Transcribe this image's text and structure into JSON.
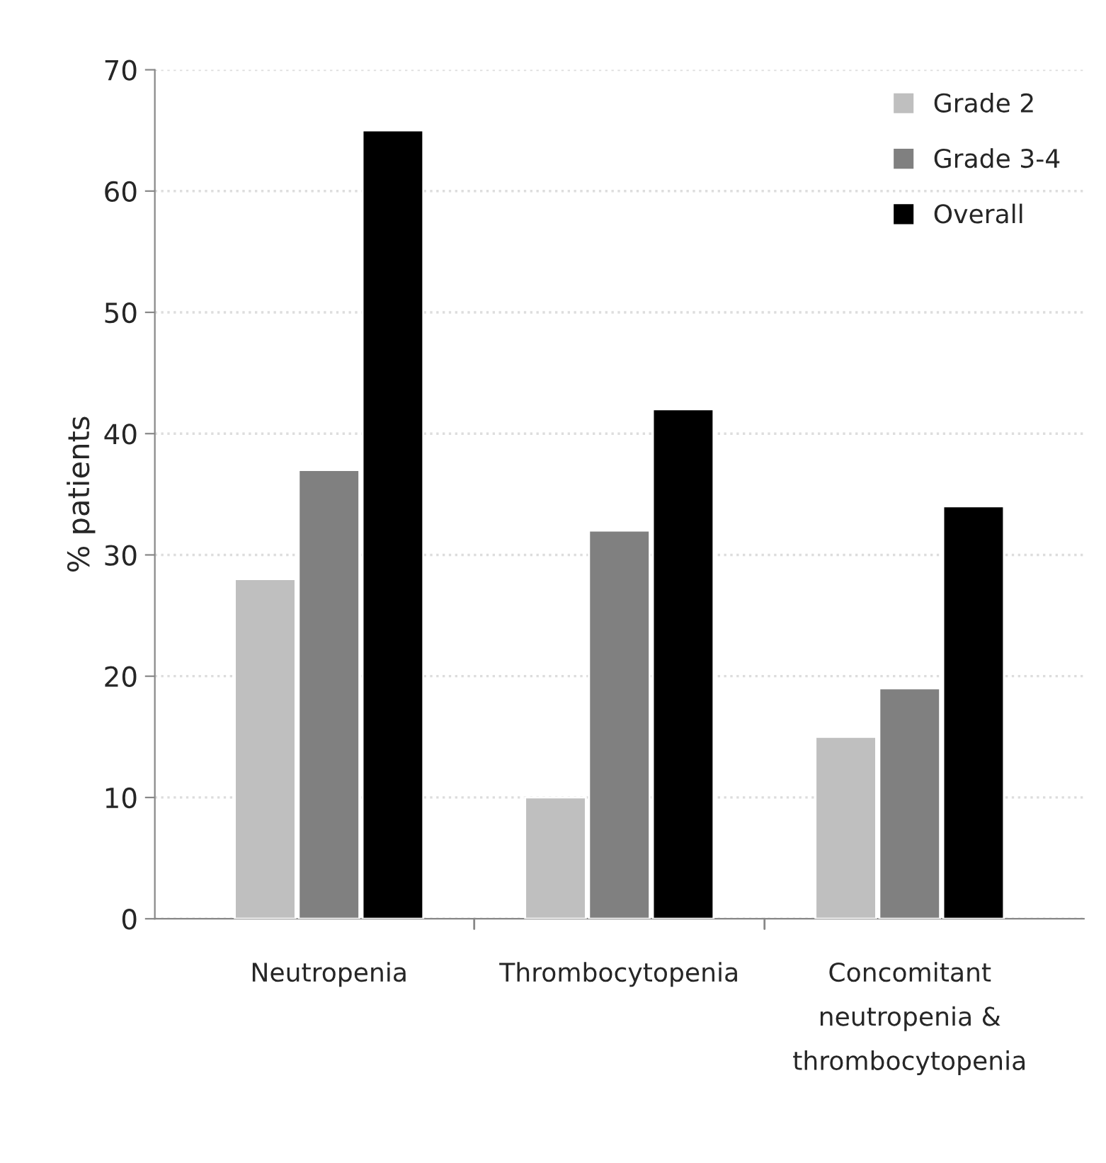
{
  "chart_data": {
    "type": "bar",
    "ylabel": "% patients",
    "categories": [
      "Neutropenia",
      "Thrombocytopenia",
      "Concomitant\nneutropenia &\nthrombocytopenia"
    ],
    "series": [
      {
        "name": "Grade 2",
        "color": "#bfbfbf",
        "values": [
          28,
          10,
          15
        ]
      },
      {
        "name": "Grade 3-4",
        "color": "#808080",
        "values": [
          37,
          32,
          19
        ]
      },
      {
        "name": "Overall",
        "color": "#000000",
        "values": [
          65,
          42,
          34
        ]
      }
    ],
    "ylim": [
      0,
      70
    ],
    "yticks": [
      0,
      10,
      20,
      30,
      40,
      50,
      60,
      70
    ],
    "grid": "y",
    "legend": "top right"
  }
}
